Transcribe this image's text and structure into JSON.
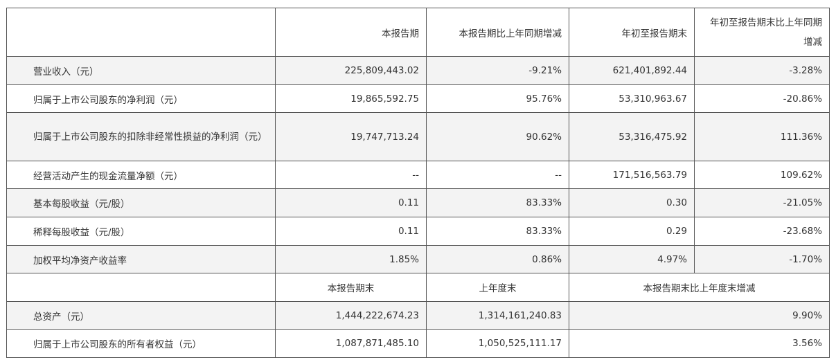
{
  "header": {
    "blank": "",
    "col1": "本报告期",
    "col2": "本报告期比上年同期增减",
    "col3": "年初至报告期末",
    "col4": "年初至报告期末比上年同期增减"
  },
  "rows": [
    {
      "label": "营业收入（元）",
      "v1": "225,809,443.02",
      "v2": "-9.21%",
      "v3": "621,401,892.44",
      "v4": "-3.28%"
    },
    {
      "label": "归属于上市公司股东的净利润（元）",
      "v1": "19,865,592.75",
      "v2": "95.76%",
      "v3": "53,310,963.67",
      "v4": "-20.86%"
    },
    {
      "label": "归属于上市公司股东的扣除非经常性损益的净利润（元）",
      "v1": "19,747,713.24",
      "v2": "90.62%",
      "v3": "53,316,475.92",
      "v4": "111.36%"
    },
    {
      "label": "经营活动产生的现金流量净额（元）",
      "v1": "--",
      "v2": "--",
      "v3": "171,516,563.79",
      "v4": "109.62%"
    },
    {
      "label": "基本每股收益（元/股）",
      "v1": "0.11",
      "v2": "83.33%",
      "v3": "0.30",
      "v4": "-21.05%"
    },
    {
      "label": "稀释每股收益（元/股）",
      "v1": "0.11",
      "v2": "83.33%",
      "v3": "0.29",
      "v4": "-23.68%"
    },
    {
      "label": "加权平均净资产收益率",
      "v1": "1.85%",
      "v2": "0.86%",
      "v3": "4.97%",
      "v4": "-1.70%"
    }
  ],
  "header2": {
    "col1": "本报告期末",
    "col2": "上年度末",
    "col3": "本报告期末比上年度末增减"
  },
  "rows2": [
    {
      "label": "总资产（元）",
      "v1": "1,444,222,674.23",
      "v2": "1,314,161,240.83",
      "v3": "9.90%"
    },
    {
      "label": "归属于上市公司股东的所有者权益（元）",
      "v1": "1,087,871,485.10",
      "v2": "1,050,525,111.17",
      "v3": "3.56%"
    }
  ]
}
